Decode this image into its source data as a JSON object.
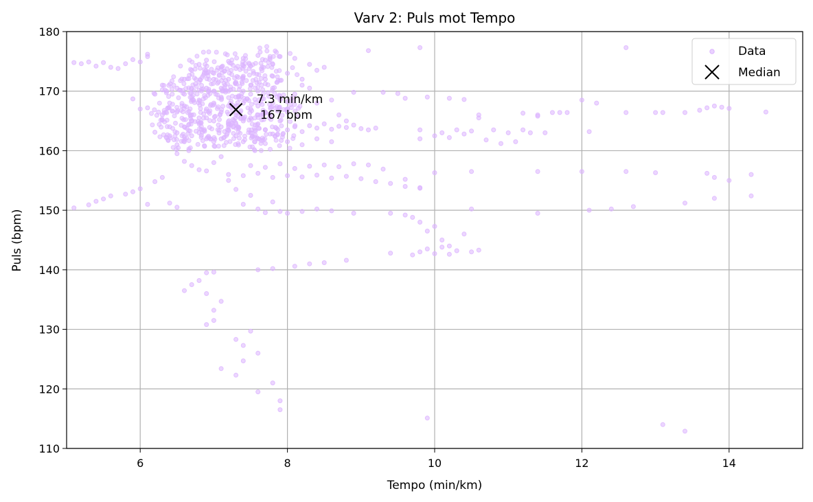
{
  "chart_data": {
    "type": "scatter",
    "title": "Varv 2: Puls mot Tempo",
    "xlabel": "Tempo (min/km)",
    "ylabel": "Puls (bpm)",
    "xlim": [
      5,
      15
    ],
    "ylim": [
      110,
      180
    ],
    "xticks": [
      6,
      8,
      10,
      12,
      14
    ],
    "yticks": [
      110,
      120,
      130,
      140,
      150,
      160,
      170,
      180
    ],
    "grid": true,
    "legend": {
      "placement": "top-right",
      "entries": [
        "Data",
        "Median"
      ]
    },
    "colors": {
      "data": "#dcb4ff",
      "median": "#000000",
      "grid": "#b0b0b0"
    },
    "series": [
      {
        "name": "Data",
        "marker": "circle",
        "points": [
          [
            5.1,
            174.8
          ],
          [
            5.2,
            174.6
          ],
          [
            5.3,
            174.9
          ],
          [
            5.4,
            174.2
          ],
          [
            5.5,
            174.8
          ],
          [
            5.6,
            174.0
          ],
          [
            5.7,
            173.8
          ],
          [
            5.8,
            174.6
          ],
          [
            5.9,
            175.3
          ],
          [
            6.0,
            174.9
          ],
          [
            6.1,
            175.8
          ],
          [
            6.1,
            176.2
          ],
          [
            5.1,
            150.4
          ],
          [
            5.3,
            150.9
          ],
          [
            5.4,
            151.5
          ],
          [
            5.5,
            151.9
          ],
          [
            5.6,
            152.4
          ],
          [
            5.8,
            152.7
          ],
          [
            5.9,
            153.1
          ],
          [
            6.0,
            153.6
          ],
          [
            6.1,
            151.0
          ],
          [
            6.2,
            154.8
          ],
          [
            6.3,
            155.5
          ],
          [
            6.4,
            151.2
          ],
          [
            6.5,
            150.5
          ],
          [
            5.9,
            168.7
          ],
          [
            6.0,
            167.0
          ],
          [
            6.1,
            167.2
          ],
          [
            6.2,
            163.1
          ],
          [
            6.3,
            165.1
          ],
          [
            6.2,
            169.5
          ],
          [
            6.3,
            171.0
          ],
          [
            6.4,
            162.5
          ],
          [
            6.5,
            161.0
          ],
          [
            6.5,
            159.5
          ],
          [
            6.6,
            158.2
          ],
          [
            6.7,
            157.5
          ],
          [
            6.8,
            156.8
          ],
          [
            6.9,
            156.6
          ],
          [
            7.0,
            158.0
          ],
          [
            7.1,
            159.0
          ],
          [
            7.2,
            155.0
          ],
          [
            7.3,
            153.5
          ],
          [
            7.4,
            151.0
          ],
          [
            7.5,
            152.5
          ],
          [
            7.6,
            150.2
          ],
          [
            7.7,
            149.6
          ],
          [
            7.8,
            151.4
          ],
          [
            7.9,
            149.8
          ],
          [
            8.0,
            149.5
          ],
          [
            8.2,
            149.8
          ],
          [
            8.4,
            150.2
          ],
          [
            8.6,
            149.9
          ],
          [
            8.9,
            149.5
          ],
          [
            7.2,
            156.0
          ],
          [
            7.4,
            155.8
          ],
          [
            7.6,
            156.2
          ],
          [
            7.8,
            155.5
          ],
          [
            8.0,
            155.8
          ],
          [
            8.2,
            155.6
          ],
          [
            8.4,
            155.9
          ],
          [
            8.6,
            155.4
          ],
          [
            8.8,
            155.7
          ],
          [
            9.0,
            155.3
          ],
          [
            9.2,
            154.8
          ],
          [
            9.4,
            154.5
          ],
          [
            9.6,
            154.0
          ],
          [
            9.8,
            153.8
          ],
          [
            7.5,
            157.5
          ],
          [
            7.7,
            157.2
          ],
          [
            7.9,
            157.8
          ],
          [
            8.1,
            157.0
          ],
          [
            8.3,
            157.4
          ],
          [
            8.5,
            157.6
          ],
          [
            8.7,
            157.3
          ],
          [
            8.9,
            157.8
          ],
          [
            9.1,
            157.6
          ],
          [
            9.3,
            156.9
          ],
          [
            6.6,
            164.0
          ],
          [
            6.7,
            166.0
          ],
          [
            6.8,
            168.5
          ],
          [
            6.9,
            170.5
          ],
          [
            7.0,
            172.0
          ],
          [
            7.1,
            169.0
          ],
          [
            7.2,
            167.5
          ],
          [
            7.3,
            171.5
          ],
          [
            7.4,
            168.0
          ],
          [
            7.5,
            165.5
          ],
          [
            7.6,
            170.0
          ],
          [
            7.7,
            166.5
          ],
          [
            7.8,
            172.5
          ],
          [
            6.5,
            170.5
          ],
          [
            6.6,
            172.0
          ],
          [
            6.7,
            173.5
          ],
          [
            6.8,
            174.5
          ],
          [
            6.9,
            175.2
          ],
          [
            7.0,
            173.0
          ],
          [
            7.1,
            174.0
          ],
          [
            7.2,
            175.0
          ],
          [
            7.3,
            173.8
          ],
          [
            7.4,
            175.5
          ],
          [
            7.5,
            174.2
          ],
          [
            7.6,
            176.0
          ],
          [
            7.7,
            175.2
          ],
          [
            7.8,
            174.5
          ],
          [
            7.9,
            175.8
          ],
          [
            6.4,
            168.0
          ],
          [
            6.5,
            166.5
          ],
          [
            6.6,
            169.5
          ],
          [
            6.7,
            162.5
          ],
          [
            6.8,
            164.5
          ],
          [
            6.9,
            167.0
          ],
          [
            7.0,
            165.0
          ],
          [
            7.1,
            162.0
          ],
          [
            7.2,
            163.5
          ],
          [
            7.3,
            166.0
          ],
          [
            7.4,
            161.5
          ],
          [
            7.5,
            163.0
          ],
          [
            7.6,
            164.5
          ],
          [
            7.7,
            161.2
          ],
          [
            7.8,
            162.8
          ],
          [
            6.3,
            166.0
          ],
          [
            6.4,
            164.0
          ],
          [
            6.5,
            163.0
          ],
          [
            6.6,
            161.5
          ],
          [
            6.7,
            168.5
          ],
          [
            6.8,
            171.5
          ],
          [
            6.9,
            162.0
          ],
          [
            7.0,
            168.0
          ],
          [
            7.1,
            170.5
          ],
          [
            7.2,
            164.0
          ],
          [
            7.3,
            169.0
          ],
          [
            7.4,
            172.5
          ],
          [
            7.5,
            167.0
          ],
          [
            7.6,
            162.0
          ],
          [
            6.6,
            167.5
          ],
          [
            6.7,
            169.0
          ],
          [
            6.8,
            165.5
          ],
          [
            6.9,
            173.0
          ],
          [
            7.0,
            170.0
          ],
          [
            7.1,
            166.5
          ],
          [
            7.2,
            172.0
          ],
          [
            7.3,
            164.5
          ],
          [
            7.4,
            170.0
          ],
          [
            7.5,
            169.5
          ],
          [
            7.6,
            167.5
          ],
          [
            7.7,
            172.0
          ],
          [
            7.8,
            168.0
          ],
          [
            7.9,
            165.0
          ],
          [
            6.8,
            163.0
          ],
          [
            6.9,
            165.5
          ],
          [
            7.0,
            161.5
          ],
          [
            7.1,
            164.0
          ],
          [
            7.2,
            170.0
          ],
          [
            7.3,
            162.5
          ],
          [
            7.4,
            165.0
          ],
          [
            7.5,
            171.0
          ],
          [
            7.6,
            166.0
          ],
          [
            7.7,
            163.5
          ],
          [
            7.8,
            170.5
          ],
          [
            7.9,
            168.5
          ],
          [
            8.0,
            166.5
          ],
          [
            8.0,
            163.5
          ],
          [
            8.1,
            164.0
          ],
          [
            8.2,
            163.2
          ],
          [
            8.3,
            164.2
          ],
          [
            8.4,
            163.8
          ],
          [
            8.5,
            164.5
          ],
          [
            8.6,
            163.6
          ],
          [
            8.7,
            164.1
          ],
          [
            8.8,
            163.9
          ],
          [
            8.9,
            164.3
          ],
          [
            9.0,
            163.7
          ],
          [
            9.1,
            163.5
          ],
          [
            9.2,
            163.8
          ],
          [
            8.0,
            167.0
          ],
          [
            8.1,
            169.5
          ],
          [
            8.2,
            171.0
          ],
          [
            8.3,
            170.5
          ],
          [
            8.4,
            173.5
          ],
          [
            8.5,
            174.0
          ],
          [
            8.6,
            168.5
          ],
          [
            8.7,
            166.0
          ],
          [
            8.8,
            165.0
          ],
          [
            8.9,
            169.8
          ],
          [
            9.1,
            176.8
          ],
          [
            8.0,
            173.0
          ],
          [
            8.1,
            175.5
          ],
          [
            8.2,
            172.0
          ],
          [
            8.3,
            174.5
          ],
          [
            8.4,
            168.0
          ],
          [
            8.0,
            161.5
          ],
          [
            8.2,
            161.0
          ],
          [
            8.4,
            162.0
          ],
          [
            8.6,
            161.5
          ],
          [
            9.3,
            169.8
          ],
          [
            9.5,
            169.6
          ],
          [
            9.6,
            168.8
          ],
          [
            9.8,
            177.3
          ],
          [
            9.8,
            162.0
          ],
          [
            9.8,
            163.5
          ],
          [
            9.9,
            169.0
          ],
          [
            10.0,
            162.5
          ],
          [
            10.1,
            163.0
          ],
          [
            10.2,
            162.2
          ],
          [
            10.3,
            163.5
          ],
          [
            10.4,
            162.8
          ],
          [
            10.5,
            163.3
          ],
          [
            10.6,
            166.0
          ],
          [
            10.7,
            161.8
          ],
          [
            10.8,
            163.5
          ],
          [
            10.9,
            161.2
          ],
          [
            11.0,
            163.0
          ],
          [
            11.1,
            161.5
          ],
          [
            11.2,
            163.5
          ],
          [
            11.3,
            163.0
          ],
          [
            11.4,
            166.0
          ],
          [
            11.5,
            163.0
          ],
          [
            11.6,
            166.4
          ],
          [
            11.7,
            166.4
          ],
          [
            11.8,
            166.4
          ],
          [
            12.0,
            168.5
          ],
          [
            12.1,
            163.2
          ],
          [
            12.2,
            168.0
          ],
          [
            12.6,
            166.4
          ],
          [
            13.0,
            166.4
          ],
          [
            13.1,
            166.4
          ],
          [
            13.4,
            166.4
          ],
          [
            13.6,
            166.8
          ],
          [
            13.7,
            167.2
          ],
          [
            13.8,
            167.5
          ],
          [
            13.9,
            167.3
          ],
          [
            14.0,
            167.1
          ],
          [
            14.5,
            166.5
          ],
          [
            12.6,
            177.3
          ],
          [
            10.2,
            168.8
          ],
          [
            10.4,
            168.6
          ],
          [
            11.4,
            165.8
          ],
          [
            11.2,
            166.3
          ],
          [
            10.6,
            165.5
          ],
          [
            9.6,
            155.2
          ],
          [
            9.8,
            153.7
          ],
          [
            10.0,
            156.3
          ],
          [
            10.5,
            156.5
          ],
          [
            11.4,
            156.5
          ],
          [
            12.0,
            156.5
          ],
          [
            12.6,
            156.5
          ],
          [
            13.0,
            156.3
          ],
          [
            13.7,
            156.2
          ],
          [
            13.8,
            155.5
          ],
          [
            14.0,
            155.0
          ],
          [
            14.3,
            156.0
          ],
          [
            14.3,
            152.4
          ],
          [
            13.8,
            152.0
          ],
          [
            9.4,
            149.5
          ],
          [
            9.6,
            149.2
          ],
          [
            9.7,
            148.8
          ],
          [
            9.8,
            148.0
          ],
          [
            9.9,
            146.5
          ],
          [
            10.0,
            147.3
          ],
          [
            10.1,
            145.0
          ],
          [
            10.2,
            144.0
          ],
          [
            10.4,
            146.0
          ],
          [
            10.5,
            150.2
          ],
          [
            11.4,
            149.5
          ],
          [
            12.1,
            150.0
          ],
          [
            12.4,
            150.2
          ],
          [
            12.7,
            150.6
          ],
          [
            13.4,
            151.2
          ],
          [
            9.4,
            142.8
          ],
          [
            9.7,
            142.5
          ],
          [
            9.8,
            143.0
          ],
          [
            9.9,
            143.5
          ],
          [
            10.0,
            142.7
          ],
          [
            10.1,
            143.8
          ],
          [
            10.2,
            142.6
          ],
          [
            10.3,
            143.2
          ],
          [
            10.5,
            143.0
          ],
          [
            10.6,
            143.3
          ],
          [
            8.1,
            140.6
          ],
          [
            8.3,
            141.0
          ],
          [
            8.5,
            141.2
          ],
          [
            8.8,
            141.6
          ],
          [
            7.8,
            140.2
          ],
          [
            7.6,
            140.0
          ],
          [
            6.6,
            136.5
          ],
          [
            6.7,
            137.5
          ],
          [
            6.8,
            138.2
          ],
          [
            6.9,
            139.5
          ],
          [
            7.0,
            139.6
          ],
          [
            6.9,
            136.0
          ],
          [
            7.0,
            133.2
          ],
          [
            7.0,
            131.5
          ],
          [
            7.1,
            134.7
          ],
          [
            6.9,
            130.8
          ],
          [
            7.1,
            123.4
          ],
          [
            7.3,
            122.3
          ],
          [
            7.4,
            124.7
          ],
          [
            7.4,
            127.3
          ],
          [
            7.5,
            129.7
          ],
          [
            7.6,
            126.0
          ],
          [
            7.3,
            128.3
          ],
          [
            7.6,
            119.5
          ],
          [
            7.8,
            121.0
          ],
          [
            7.9,
            118.0
          ],
          [
            7.9,
            116.5
          ],
          [
            9.9,
            115.1
          ],
          [
            13.1,
            114.0
          ],
          [
            13.4,
            112.9
          ]
        ]
      },
      {
        "name": "Median",
        "marker": "x",
        "points": [
          [
            7.3,
            166.9
          ]
        ]
      }
    ],
    "annotations": [
      {
        "text_line1": "7.3 min/km",
        "text_line2": "167 bpm",
        "x": 7.3,
        "y": 166.9
      }
    ]
  }
}
